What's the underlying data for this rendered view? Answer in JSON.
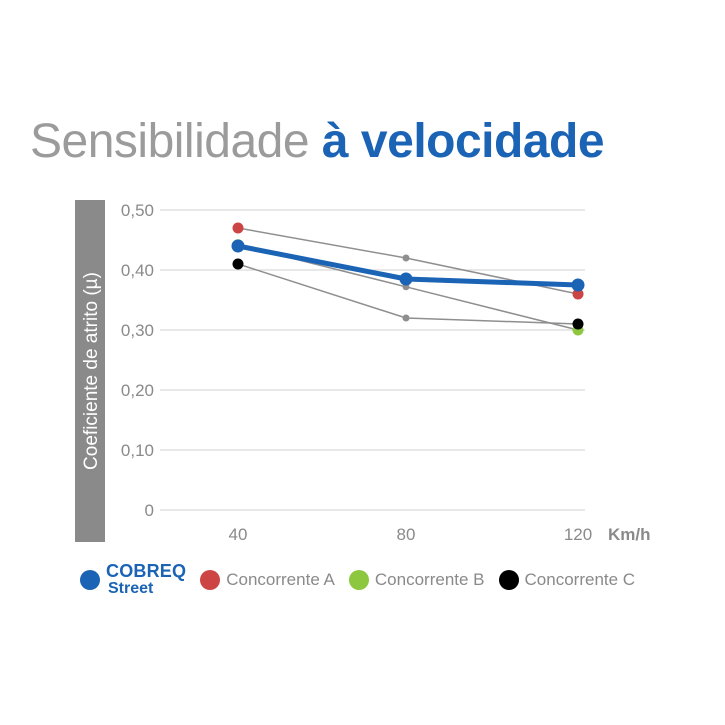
{
  "title": {
    "light": "Sensibilidade",
    "bold": "à velocidade"
  },
  "colors": {
    "brand_blue": "#1a63b5",
    "concorrente_a": "#cc4444",
    "concorrente_b": "#8dc63f",
    "concorrente_c": "#000000",
    "competitor_line": "#8f8f8f",
    "axis_label_bg": "#8a8a8a",
    "grid": "#d9d9d9",
    "tick_text": "#8a8a8a"
  },
  "chart_data": {
    "type": "line",
    "title": "Sensibilidade à velocidade",
    "ylabel": "Coeficiente de atrito (µ)",
    "xlabel": "Km/h",
    "x": [
      40,
      80,
      120
    ],
    "x_tick_labels": [
      "40",
      "80",
      "120"
    ],
    "ylim": [
      0,
      0.5
    ],
    "y_ticks": [
      0,
      0.1,
      0.2,
      0.3,
      0.4,
      0.5
    ],
    "y_tick_labels": [
      "0",
      "0,10",
      "0,20",
      "0,30",
      "0,40",
      "0,50"
    ],
    "grid": true,
    "legend_position": "bottom",
    "series": [
      {
        "name": "COBREQ Street",
        "values": [
          0.44,
          0.385,
          0.375
        ],
        "color": "#1a63b5",
        "emphasis": true
      },
      {
        "name": "Concorrente A",
        "values": [
          0.47,
          0.42,
          0.36
        ],
        "color": "#cc4444"
      },
      {
        "name": "Concorrente B",
        "values": [
          0.442,
          0.372,
          0.3
        ],
        "color": "#8dc63f"
      },
      {
        "name": "Concorrente C",
        "values": [
          0.41,
          0.32,
          0.31
        ],
        "color": "#000000"
      }
    ]
  },
  "legend": [
    {
      "brand_top": "COBREQ",
      "brand_bottom": "Street",
      "color": "#1a63b5"
    },
    {
      "label": "Concorrente A",
      "color": "#cc4444"
    },
    {
      "label": "Concorrente B",
      "color": "#8dc63f"
    },
    {
      "label": "Concorrente C",
      "color": "#000000"
    }
  ]
}
